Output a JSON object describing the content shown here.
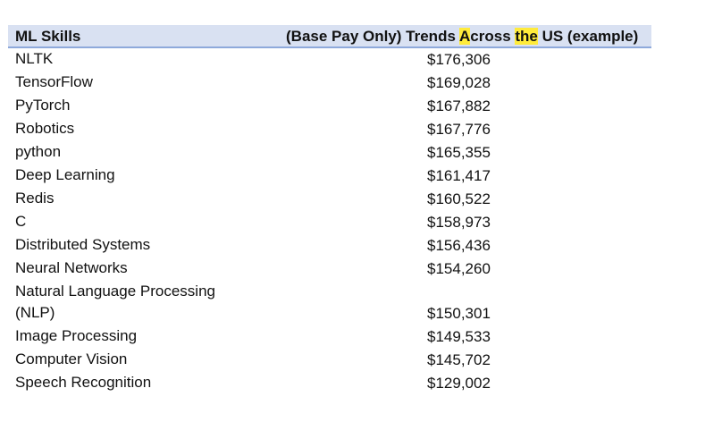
{
  "table": {
    "headers": {
      "skill": "ML Skills",
      "pay_parts": [
        "(Base Pay Only) Trends ",
        "A",
        "cross ",
        "the",
        " US (example)"
      ]
    },
    "rows": [
      {
        "skill": "NLTK",
        "pay": "$176,306"
      },
      {
        "skill": "TensorFlow",
        "pay": "$169,028"
      },
      {
        "skill": "PyTorch",
        "pay": "$167,882"
      },
      {
        "skill": "Robotics",
        "pay": "$167,776"
      },
      {
        "skill": "python",
        "pay": "$165,355"
      },
      {
        "skill": "Deep Learning",
        "pay": "$161,417"
      },
      {
        "skill": "Redis",
        "pay": "$160,522"
      },
      {
        "skill": "C",
        "pay": "$158,973"
      },
      {
        "skill": "Distributed Systems",
        "pay": "$156,436"
      },
      {
        "skill": "Neural Networks",
        "pay": "$154,260"
      },
      {
        "skill": "Natural Language Processing (NLP)",
        "pay": "$150,301"
      },
      {
        "skill": "Image Processing",
        "pay": "$149,533"
      },
      {
        "skill": "Computer Vision",
        "pay": "$145,702"
      },
      {
        "skill": "Speech Recognition",
        "pay": "$129,002"
      }
    ]
  },
  "colors": {
    "header_bg": "#d9e1f2",
    "header_border": "#8ea9db",
    "highlight": "#ffeb3b"
  }
}
